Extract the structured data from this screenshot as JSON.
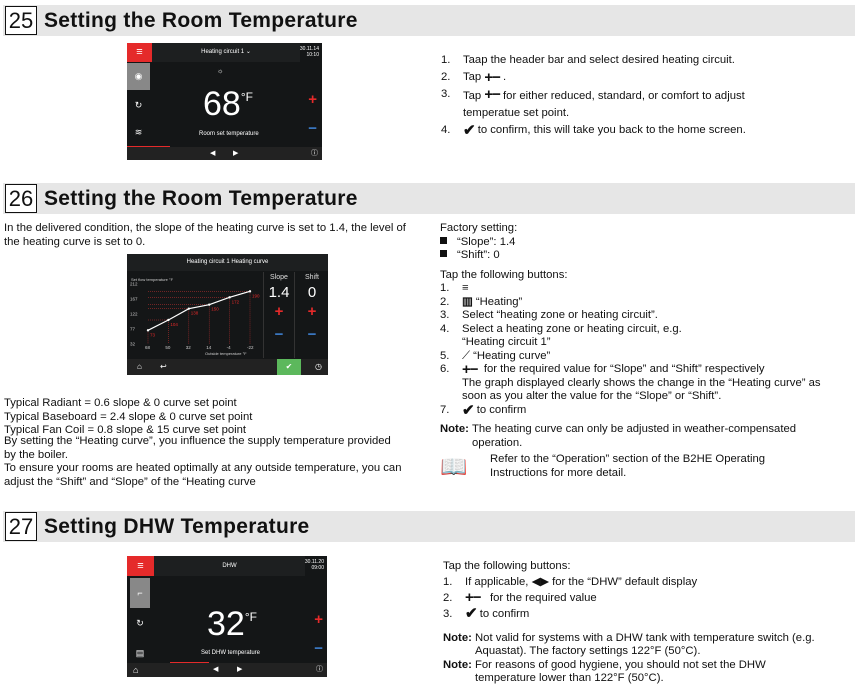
{
  "sections": [
    {
      "number": "25",
      "title": "Setting the Room Temperature"
    },
    {
      "number": "26",
      "title": "Setting the Room Temperature"
    },
    {
      "number": "27",
      "title": "Setting DHW Temperature"
    }
  ],
  "s25": {
    "screen": {
      "header": "Heating circuit 1",
      "date": "30.11.14",
      "time": "10:10",
      "value": "68",
      "unit": "°F",
      "label": "Room set temperature"
    },
    "steps": [
      {
        "n": "1.",
        "text": "Taap the header bar and select desired heating circuit."
      },
      {
        "n": "2.",
        "pre": "Tap",
        "text": "."
      },
      {
        "n": "3.",
        "pre": "Tap",
        "text": "for either reduced, standard, or comfort to adjust temperatue set point."
      },
      {
        "n": "4.",
        "text": "to confirm, this will take you back to the home screen."
      }
    ]
  },
  "s26": {
    "intro": "In the delivered condition, the slope of the heating curve is set to 1.4, the level of the heating curve is set to 0.",
    "typical": [
      "Typical Radiant = 0.6 slope & 0 curve set point",
      "Typical Baseboard = 2.4 slope & 0 curve set point",
      "Typical Fan Coil = 0.8 slope & 15 curve set point"
    ],
    "body": [
      "By setting the “Heating curve”, you influence the supply temperature provided by the boiler.",
      "To ensure your rooms are heated optimally at any outside temperature, you can adjust the “Shift” and “Slope” of the “Heating curve"
    ],
    "screen": {
      "header": "Heating circuit 1 Heating curve",
      "ylabel": "Set flow temperature °F",
      "xlabel": "Outside temperature °F",
      "slope_label": "Slope",
      "shift_label": "Shift",
      "slope": "1.4",
      "shift": "0",
      "yticks": [
        "212",
        "167",
        "122",
        "77",
        "32"
      ],
      "xticks": [
        "68",
        "50",
        "32",
        "14",
        "-4",
        "-22"
      ],
      "points": [
        {
          "x": 68,
          "y": 73
        },
        {
          "x": 50,
          "y": 104
        },
        {
          "x": 32,
          "y": 138
        },
        {
          "x": 14,
          "y": 150
        },
        {
          "x": -4,
          "y": 172
        },
        {
          "x": -22,
          "y": 190
        }
      ]
    },
    "factory_title": "Factory setting:",
    "factory": [
      "“Slope”: 1.4",
      "“Shift”: 0"
    ],
    "tap": "Tap the following buttons:",
    "steps": [
      {
        "n": "1.",
        "text": ""
      },
      {
        "n": "2.",
        "text": "“Heating”"
      },
      {
        "n": "3.",
        "text": "Select “heating zone or heating circuit”."
      },
      {
        "n": "4.",
        "text": "Select a heating zone or heating circuit, e.g. “Heating circuit 1”"
      },
      {
        "n": "5.",
        "text": "“Heating curve”"
      },
      {
        "n": "6.",
        "text": "for the required value for “Slope” and “Shift” respectively"
      },
      {
        "n": "7.",
        "text": "to confirm"
      }
    ],
    "step6_more": "The graph displayed clearly shows the change in the “Heating curve” as soon as you alter the value for the “Slope” or “Shift”.",
    "note_label": "Note:",
    "note": "The heating curve can only be adjusted in weather-compensated operation.",
    "refer": "Refer to the “Operation” section of the  B2HE Operating Instructions for more detail."
  },
  "s27": {
    "screen": {
      "header": "DHW",
      "date": "30.11.20",
      "time": "09:00",
      "value": "32",
      "unit": "°F",
      "label": "Set DHW temperature"
    },
    "tap": "Tap the following buttons:",
    "steps": [
      {
        "n": "1.",
        "pre": "If applicable,",
        "text": "for the “DHW” default display"
      },
      {
        "n": "2.",
        "text": "for the required value"
      },
      {
        "n": "3.",
        "text": "to confirm"
      }
    ],
    "notes": [
      {
        "label": "Note:",
        "text": "Not valid for systems with a DHW tank with temperature switch (e.g. Aquastat). The factory settings 122°F (50°C)."
      },
      {
        "label": "Note:",
        "text": "For reasons of good hygiene, you should not set the DHW temperature lower than 122°F (50°C)."
      }
    ]
  },
  "colors": {
    "accent": "#e52a2a",
    "minus": "#3d7cc9",
    "confirm": "#5cb85c",
    "screen_bg": "#141617"
  }
}
